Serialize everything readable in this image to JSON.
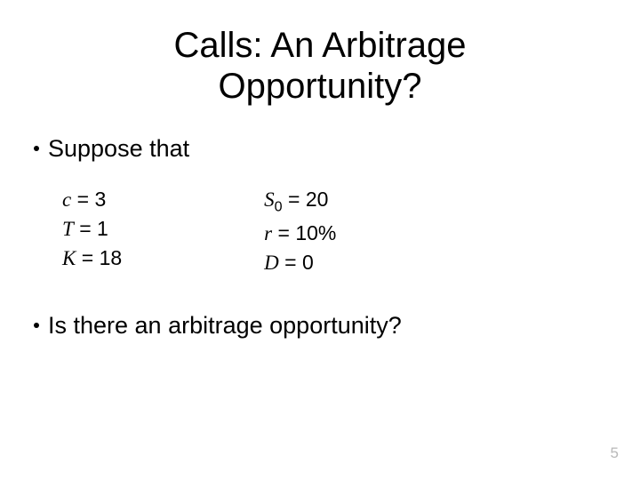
{
  "slide": {
    "title_line1": "Calls: An Arbitrage",
    "title_line2": "Opportunity?",
    "title_fontsize": 40,
    "title_color": "#000000",
    "bullet1": "Suppose that",
    "bullet2": "Is there an arbitrage opportunity?",
    "bullet_fontsize": 27,
    "param_fontsize": 23,
    "params_left": [
      {
        "var": "c",
        "val": "3"
      },
      {
        "var": "T",
        "val": "1"
      },
      {
        "var": "K",
        "val": "18"
      }
    ],
    "params_right": [
      {
        "var": "S",
        "sub": "0",
        "val": "20"
      },
      {
        "var": "r",
        "val": "10%"
      },
      {
        "var": "D",
        "val": "0"
      }
    ],
    "page_number": "5",
    "page_number_fontsize": 17,
    "background_color": "#ffffff"
  }
}
